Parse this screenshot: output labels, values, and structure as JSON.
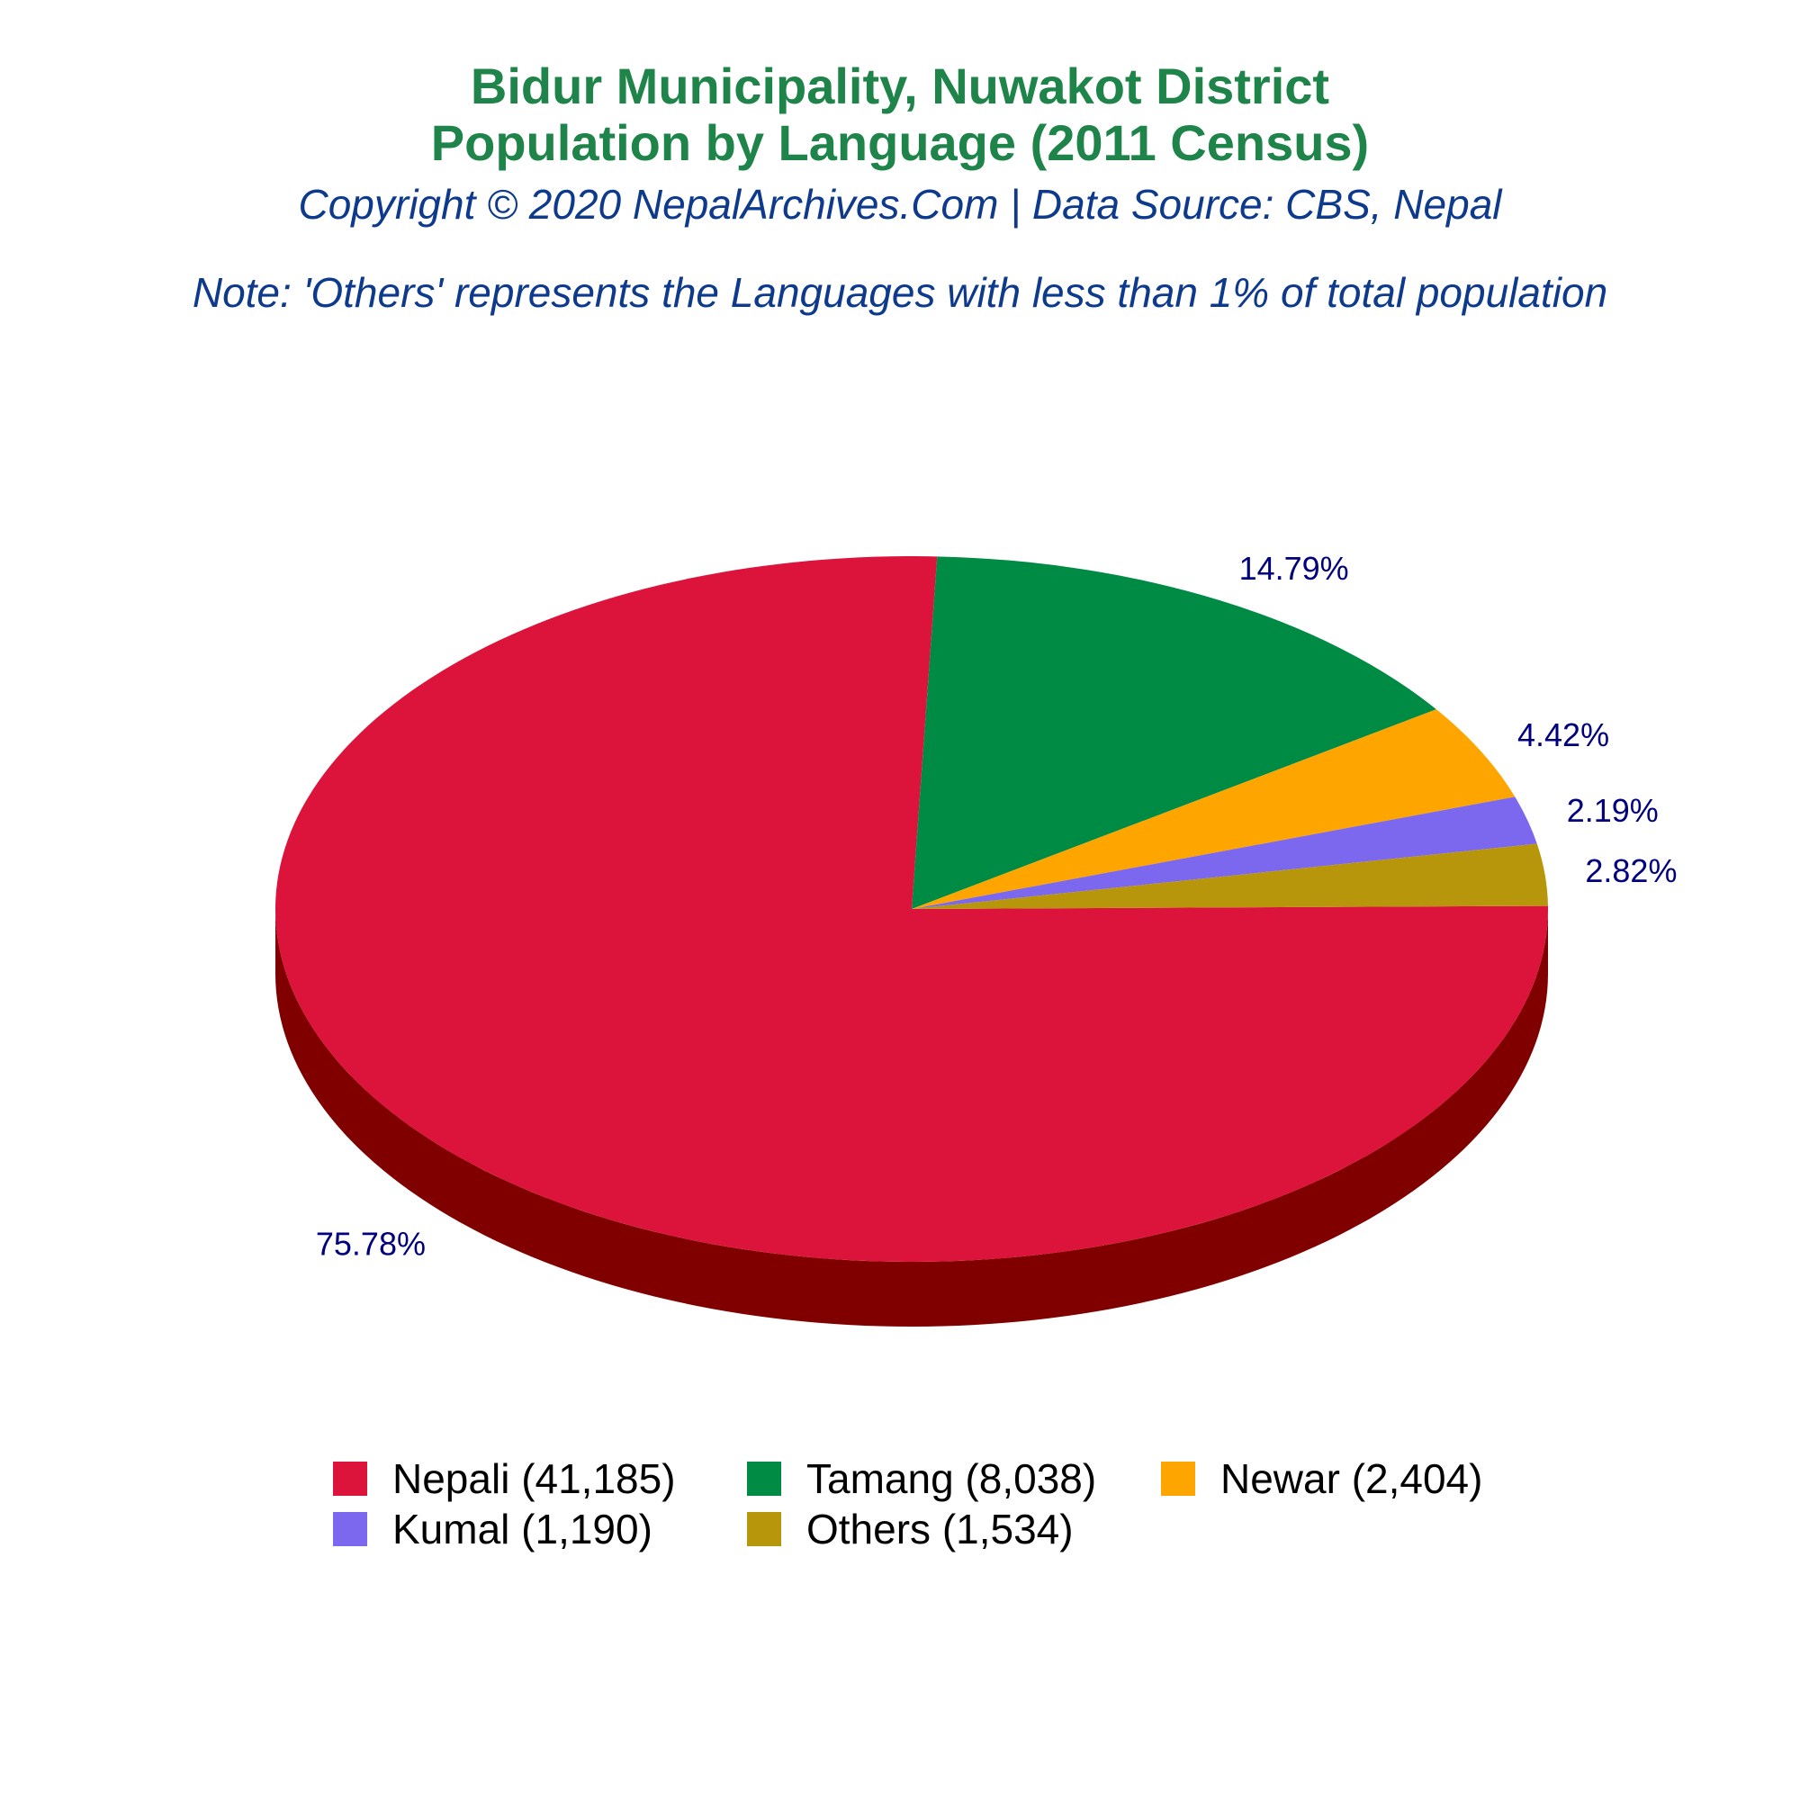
{
  "header": {
    "title_line1": "Bidur Municipality, Nuwakot District",
    "title_line2": "Population by Language (2011 Census)",
    "copyright": "Copyright © 2020 NepalArchives.Com | Data Source: CBS, Nepal",
    "note": "Note: 'Others' represents the Languages with less than 1% of total population"
  },
  "chart_data": {
    "type": "pie",
    "style": "3d",
    "categories": [
      "Nepali",
      "Tamang",
      "Newar",
      "Kumal",
      "Others"
    ],
    "values": [
      41185,
      8038,
      2404,
      1190,
      1534
    ],
    "percent_labels": [
      "75.78%",
      "14.79%",
      "4.42%",
      "2.19%",
      "2.82%"
    ],
    "legend_labels": [
      "Nepali (41,185)",
      "Tamang (8,038)",
      "Newar (2,404)",
      "Kumal (1,190)",
      "Others (1,534)"
    ],
    "colors": [
      "#dc143c",
      "#008b45",
      "#ffa500",
      "#7b68ee",
      "#b8960c"
    ],
    "side_colors": [
      "#800000",
      "#003300",
      "#b37300",
      "#5040b0",
      "#806808"
    ],
    "label_color": "#00007f",
    "legend_position": "bottom"
  }
}
